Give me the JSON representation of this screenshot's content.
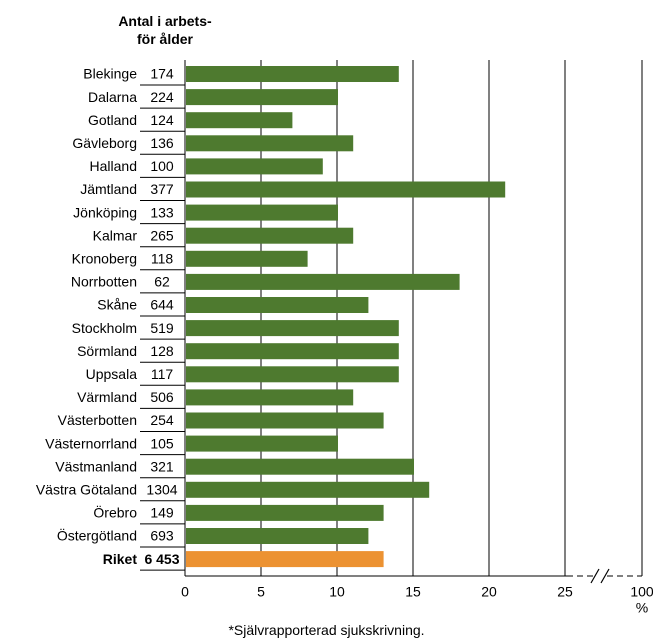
{
  "header": {
    "line1": "Antal i arbets-",
    "line2": "för ålder"
  },
  "footnote": "*Självrapporterad sjukskrivning.",
  "colors": {
    "bar": "#4e7a2f",
    "total_bar": "#ec9232",
    "grid": "#000000"
  },
  "chart_data": {
    "type": "bar",
    "orientation": "horizontal",
    "categories": [
      "Blekinge",
      "Dalarna",
      "Gotland",
      "Gävleborg",
      "Halland",
      "Jämtland",
      "Jönköping",
      "Kalmar",
      "Kronoberg",
      "Norrbotten",
      "Skåne",
      "Stockholm",
      "Sörmland",
      "Uppsala",
      "Värmland",
      "Västerbotten",
      "Västernorrland",
      "Västmanland",
      "Västra Götaland",
      "Örebro",
      "Östergötland",
      "Riket"
    ],
    "counts": [
      "174",
      "224",
      "124",
      "136",
      "100",
      "377",
      "133",
      "265",
      "118",
      "62",
      "644",
      "519",
      "128",
      "117",
      "506",
      "254",
      "105",
      "321",
      "1304",
      "149",
      "693",
      "6 453"
    ],
    "values": [
      14,
      10,
      7,
      11,
      9,
      21,
      10,
      11,
      8,
      18,
      12,
      14,
      14,
      14,
      11,
      13,
      10,
      15,
      16,
      13,
      12,
      13
    ],
    "highlight_category": "Riket",
    "x_ticks": [
      "0",
      "5",
      "10",
      "15",
      "20",
      "25",
      "100"
    ],
    "x_unit": "%",
    "xlim": [
      0,
      25
    ],
    "axis_break": true,
    "grid": true
  }
}
